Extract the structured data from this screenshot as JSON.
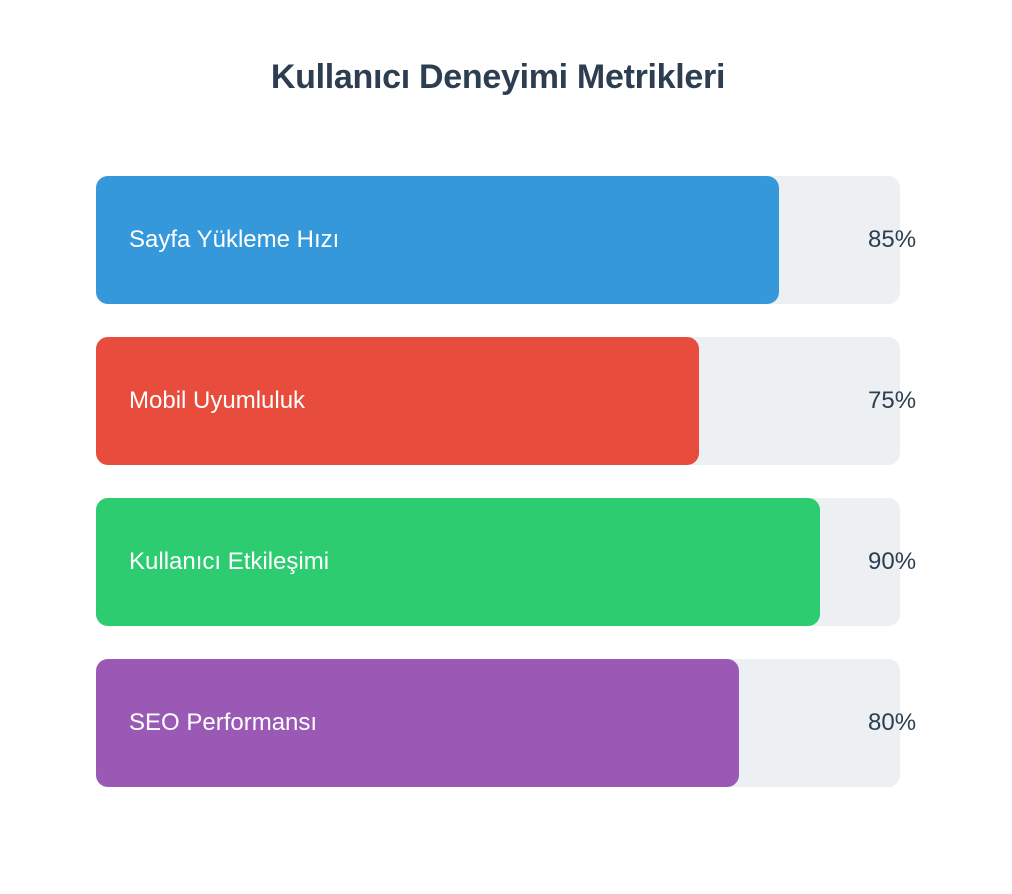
{
  "chart_data": {
    "type": "bar",
    "title": "Kullanıcı Deneyimi Metrikleri",
    "orientation": "horizontal",
    "xlim": [
      0,
      100
    ],
    "categories": [
      "Sayfa Yükleme Hızı",
      "Mobil Uyumluluk",
      "Kullanıcı Etkileşimi",
      "SEO Performansı"
    ],
    "values": [
      85,
      75,
      90,
      80
    ],
    "value_labels": [
      "85%",
      "75%",
      "90%",
      "80%"
    ],
    "colors": [
      "#3498db",
      "#e74c3c",
      "#2ecc71",
      "#9b59b6"
    ],
    "track_color": "#ecf0f3",
    "grid": false
  }
}
